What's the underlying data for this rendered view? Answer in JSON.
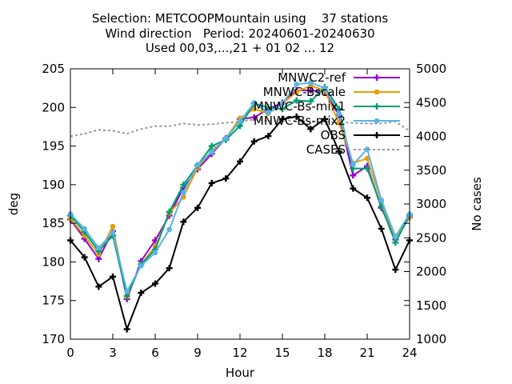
{
  "chart_data": {
    "type": "line",
    "title_lines": [
      "Selection: METCOOPMountain using    37 stations",
      "Wind direction   Period: 20240601-20240630",
      "Used 00,03,...,21 + 01 02 ... 12"
    ],
    "xlabel": "Hour",
    "ylabel": "deg",
    "y2label": "No cases",
    "xlim": [
      0,
      24
    ],
    "ylim": [
      170,
      205
    ],
    "y2lim": [
      1000,
      5000
    ],
    "x_ticks": [
      "0",
      "3",
      "6",
      "9",
      "12",
      "15",
      "18",
      "21",
      "24"
    ],
    "y_ticks": [
      "170",
      "175",
      "180",
      "185",
      "190",
      "195",
      "200",
      "205"
    ],
    "y2_ticks": [
      "1000",
      "1500",
      "2000",
      "2500",
      "3000",
      "3500",
      "4000",
      "4500",
      "5000"
    ],
    "grid": false,
    "legend_position": "top-right",
    "x": [
      0,
      1,
      2,
      3,
      4,
      5,
      6,
      7,
      8,
      9,
      10,
      11,
      12,
      13,
      14,
      15,
      16,
      17,
      18,
      19,
      20,
      21,
      22,
      23,
      24
    ],
    "series": [
      {
        "name": "MNWC2-ref",
        "color": "#9400d3",
        "marker": "plus",
        "values": [
          185.5,
          183.0,
          180.4,
          184.0,
          175.2,
          180.1,
          182.8,
          186.0,
          189.6,
          192.0,
          194.0,
          196.0,
          198.5,
          198.7,
          199.8,
          200.6,
          202.2,
          202.2,
          202.0,
          199.0,
          191.2,
          192.4,
          187.0,
          182.9,
          185.8
        ]
      },
      {
        "name": "MNWC-Bscale",
        "color": "#e69f00",
        "marker": "circle",
        "values": [
          185.6,
          183.4,
          181.0,
          184.6,
          175.5,
          179.7,
          182.0,
          186.3,
          188.4,
          192.2,
          194.4,
          196.0,
          198.6,
          199.8,
          199.2,
          200.5,
          202.0,
          202.8,
          202.2,
          198.0,
          192.8,
          193.4,
          187.8,
          183.1,
          185.8
        ]
      },
      {
        "name": "MNWC-Bs-mix1",
        "color": "#009e73",
        "marker": "plus",
        "values": [
          186.0,
          183.9,
          181.4,
          183.4,
          175.6,
          179.7,
          181.6,
          186.5,
          190.0,
          192.5,
          195.0,
          195.8,
          197.6,
          200.5,
          200.0,
          199.8,
          200.9,
          200.8,
          202.6,
          199.8,
          192.1,
          192.1,
          187.2,
          182.5,
          186.1
        ]
      },
      {
        "name": "MNWC-Bs-mix2",
        "color": "#56b4e9",
        "marker": "circle",
        "values": [
          186.2,
          184.3,
          181.8,
          183.8,
          176.2,
          179.5,
          181.2,
          184.2,
          189.0,
          192.6,
          194.2,
          196.0,
          198.2,
          200.6,
          199.3,
          200.5,
          203.0,
          203.2,
          202.5,
          199.2,
          192.6,
          194.6,
          188.0,
          183.3,
          186.2
        ]
      },
      {
        "name": "OBS",
        "color": "#000000",
        "marker": "plus",
        "values": [
          182.8,
          180.6,
          176.8,
          178.1,
          171.3,
          176.0,
          177.2,
          179.2,
          185.2,
          187.0,
          190.2,
          190.8,
          193.0,
          195.6,
          196.3,
          198.5,
          198.8,
          197.2,
          198.5,
          194.3,
          189.5,
          188.3,
          184.3,
          179.0,
          182.8
        ]
      }
    ],
    "cases": {
      "name": "CASES",
      "color": "#999999",
      "axis": "right",
      "values": [
        4000,
        4040,
        4100,
        4080,
        4040,
        4110,
        4150,
        4150,
        4190,
        4170,
        4180,
        4200,
        4220,
        4250,
        4230,
        4240,
        4230,
        4220,
        4220,
        4210,
        4200,
        4190,
        4190,
        4220,
        4080
      ]
    }
  }
}
